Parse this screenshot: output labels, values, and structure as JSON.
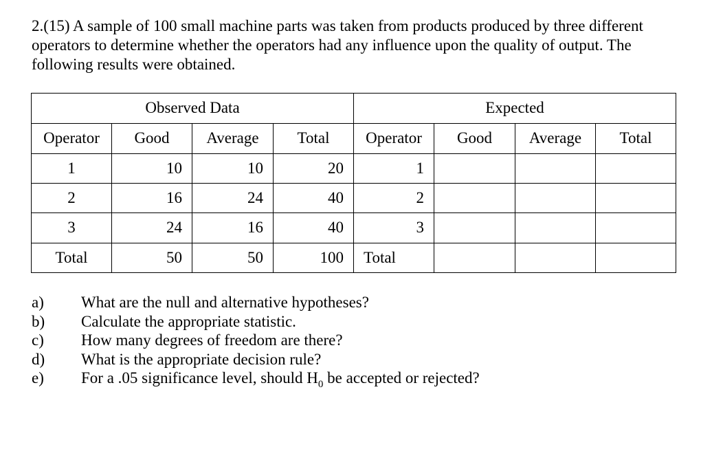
{
  "problem": {
    "text": "2.(15)  A sample of 100 small machine parts was taken from products produced by three different operators to determine whether the operators had any influence upon the quality of output.  The following results were obtained."
  },
  "table": {
    "observed_title": "Observed Data",
    "expected_title": "Expected",
    "observed_headers": [
      "Operator",
      "Good",
      "Average",
      "Total"
    ],
    "expected_headers": [
      "Operator",
      "Good",
      "Average",
      "Total"
    ],
    "observed_rows": [
      [
        "1",
        "10",
        "10",
        "20"
      ],
      [
        "2",
        "16",
        "24",
        "40"
      ],
      [
        "3",
        "24",
        "16",
        "40"
      ],
      [
        "Total",
        "50",
        "50",
        "100"
      ]
    ],
    "expected_rows": [
      [
        "1",
        "",
        "",
        ""
      ],
      [
        "2",
        "",
        "",
        ""
      ],
      [
        "3",
        "",
        "",
        ""
      ],
      [
        "Total",
        "",
        "",
        ""
      ]
    ]
  },
  "questions": [
    {
      "letter": "a)",
      "text": "What are the null and alternative hypotheses?"
    },
    {
      "letter": "b)",
      "text": "Calculate the appropriate statistic."
    },
    {
      "letter": "c)",
      "text": "How many degrees of freedom are there?"
    },
    {
      "letter": "d)",
      "text": "What is the appropriate decision rule?"
    },
    {
      "letter": "e)",
      "text": "For a .05 significance level, should H",
      "subscript": "0",
      "text_after": " be accepted or rejected?"
    }
  ]
}
